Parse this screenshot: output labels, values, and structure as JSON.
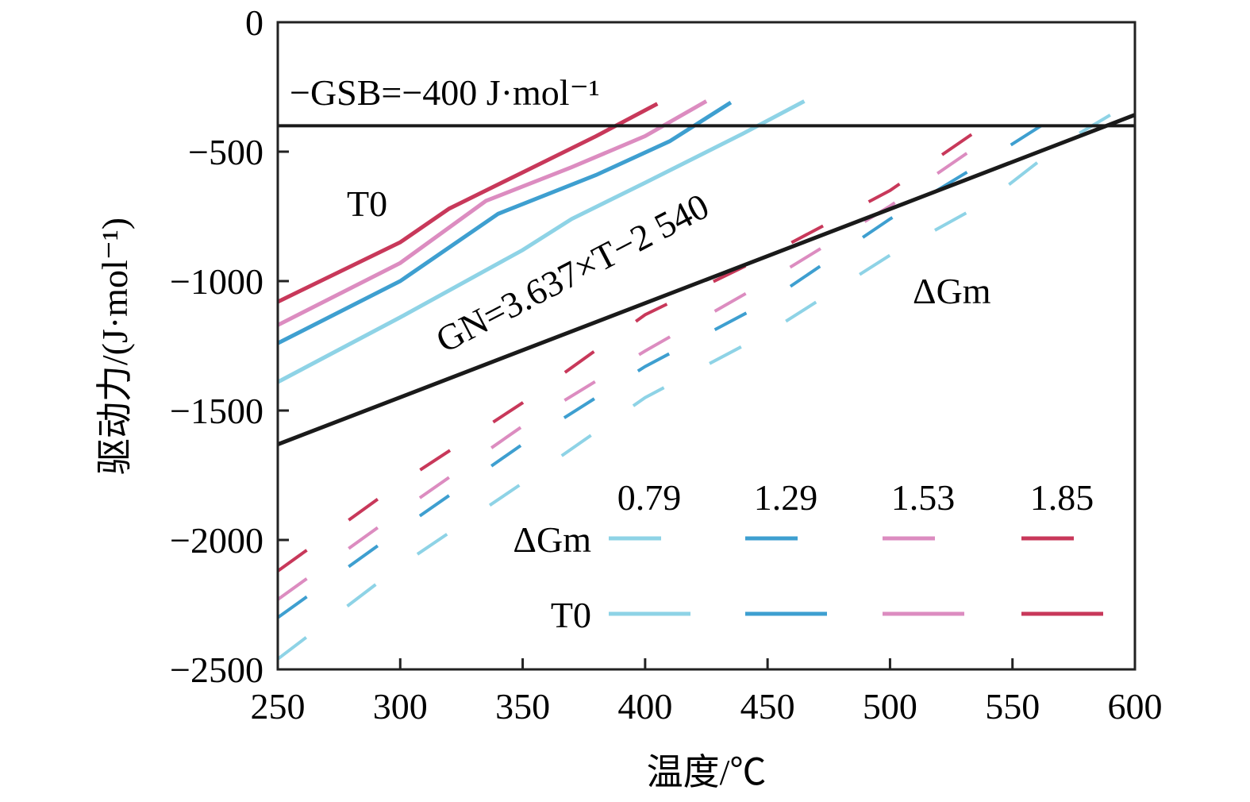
{
  "chart_data": {
    "type": "line",
    "xlabel": "温度/℃",
    "ylabel": "驱动力/(J·mol⁻¹)",
    "xlim": [
      250,
      600
    ],
    "ylim": [
      -2500,
      0
    ],
    "xticks": [
      "250",
      "300",
      "350",
      "400",
      "450",
      "500",
      "550",
      "600"
    ],
    "yticks": [
      "0",
      "−500",
      "−1000",
      "−1500",
      "−2000",
      "−2500"
    ],
    "grid": false,
    "legend_placement": "bottom-right",
    "legend_header": [
      "0.79",
      "1.29",
      "1.53",
      "1.85"
    ],
    "legend_rows": [
      "ΔGm",
      "T0"
    ],
    "annotations": {
      "gsb": "−GSB=−400 J·mol⁻¹",
      "gn": "GN=3.637×T−2 540",
      "t0": "T0",
      "dgm": "ΔGm"
    },
    "gsb_value": -400,
    "gn_line": {
      "slope": 3.637,
      "intercept": -2540
    },
    "colors": {
      "0.79": "#8ed3e6",
      "1.29": "#3e9fd0",
      "1.53": "#dc8cc0",
      "1.85": "#c8385a"
    },
    "series": [
      {
        "name": "0.79",
        "kind": "T0",
        "x": [
          250,
          300,
          350,
          370,
          400,
          440,
          465
        ],
        "y": [
          -1390,
          -1140,
          -880,
          -760,
          -620,
          -430,
          -305
        ]
      },
      {
        "name": "1.29",
        "kind": "T0",
        "x": [
          250,
          300,
          340,
          380,
          410,
          435
        ],
        "y": [
          -1240,
          -1000,
          -740,
          -590,
          -460,
          -310
        ]
      },
      {
        "name": "1.53",
        "kind": "T0",
        "x": [
          250,
          300,
          335,
          370,
          400,
          425
        ],
        "y": [
          -1170,
          -930,
          -690,
          -560,
          -440,
          -305
        ]
      },
      {
        "name": "1.85",
        "kind": "T0",
        "x": [
          250,
          300,
          320,
          350,
          380,
          405
        ],
        "y": [
          -1080,
          -850,
          -720,
          -580,
          -440,
          -315
        ]
      },
      {
        "name": "0.79",
        "kind": "ΔGm",
        "x": [
          250,
          300,
          350,
          400,
          450,
          500,
          540,
          570,
          595
        ],
        "y": [
          -2460,
          -2100,
          -1780,
          -1450,
          -1200,
          -900,
          -690,
          -470,
          -330
        ]
      },
      {
        "name": "1.29",
        "kind": "ΔGm",
        "x": [
          250,
          300,
          350,
          400,
          450,
          500,
          540,
          570
        ],
        "y": [
          -2300,
          -1960,
          -1630,
          -1330,
          -1080,
          -760,
          -530,
          -350
        ]
      },
      {
        "name": "1.53",
        "kind": "ΔGm",
        "x": [
          250,
          300,
          350,
          400,
          450,
          500,
          540
        ],
        "y": [
          -2230,
          -1890,
          -1560,
          -1270,
          -1000,
          -710,
          -450
        ]
      },
      {
        "name": "1.85",
        "kind": "ΔGm",
        "x": [
          250,
          300,
          350,
          400,
          450,
          500,
          540
        ],
        "y": [
          -2120,
          -1780,
          -1470,
          -1130,
          -900,
          -650,
          -390
        ]
      }
    ]
  }
}
